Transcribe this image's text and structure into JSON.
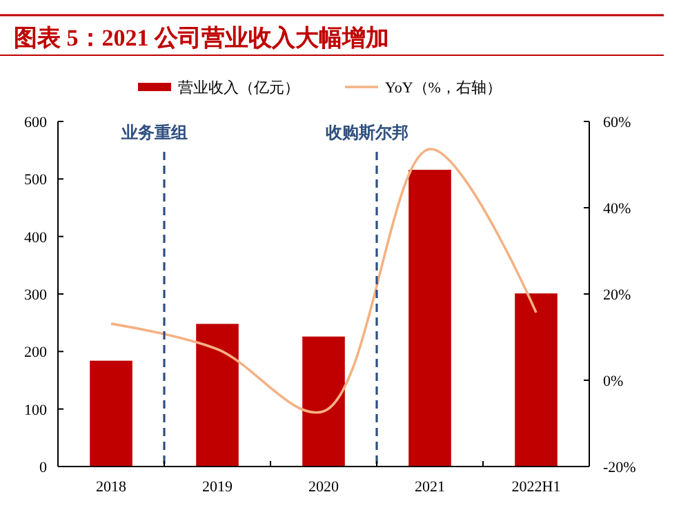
{
  "chart_data": {
    "type": "bar",
    "title": "图表 5：2021 公司营业收入大幅增加",
    "categories": [
      "2018",
      "2019",
      "2020",
      "2021",
      "2022H1"
    ],
    "series": [
      {
        "name": "营业收入（亿元）",
        "color": "#c00000",
        "values": [
          184,
          248,
          226,
          516,
          301
        ]
      },
      {
        "name": "YoY（%，右轴）",
        "color": "#f4b183",
        "type": "line",
        "axis": "y2",
        "values": [
          13.1,
          7.2,
          -7.2,
          53.6,
          15.7
        ]
      }
    ],
    "ylim": [
      0,
      600
    ],
    "yticks": [
      0,
      100,
      200,
      300,
      400,
      500,
      600
    ],
    "y2lim": [
      -20,
      60
    ],
    "y2ticks": [
      {
        "value": -20,
        "label": "-20%"
      },
      {
        "value": 0,
        "label": "0%"
      },
      {
        "value": 20,
        "label": "20%"
      },
      {
        "value": 40,
        "label": "40%"
      },
      {
        "value": 60,
        "label": "60%"
      }
    ],
    "annotations": [
      "业务重组",
      "收购斯尔邦"
    ],
    "legend": "top",
    "grid": false,
    "marker": "none"
  }
}
